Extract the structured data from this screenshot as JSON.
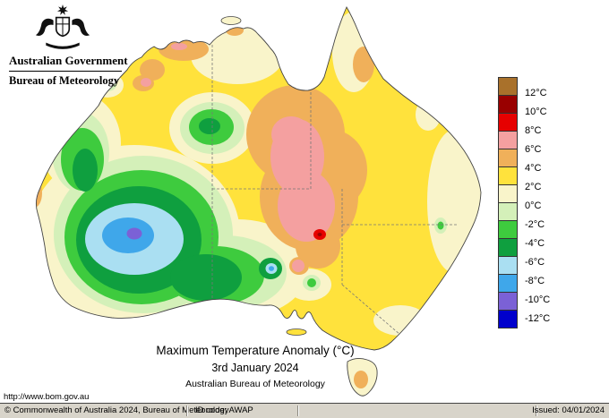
{
  "header": {
    "line1": "Australian Government",
    "line2": "Bureau of Meteorology"
  },
  "map": {
    "title": "Maximum Temperature Anomaly (°C)",
    "date": "3rd January 2024",
    "source": "Australian Bureau of Meteorology"
  },
  "legend": {
    "boundary_labels": [
      "12°C",
      "10°C",
      "8°C",
      "6°C",
      "4°C",
      "2°C",
      "0°C",
      "-2°C",
      "-4°C",
      "-6°C",
      "-8°C",
      "-10°C",
      "-12°C"
    ],
    "colors": [
      "#a9712b",
      "#990000",
      "#e60000",
      "#f4a0a0",
      "#f0b05a",
      "#ffe23c",
      "#f9f4ca",
      "#d4f0b9",
      "#3ecb3e",
      "#0f9f3f",
      "#aadff2",
      "#3fa7ea",
      "#7b61d6",
      "#0000cc"
    ]
  },
  "footer": {
    "url": "http://www.bom.gov.au",
    "copyright": "© Commonwealth of Australia 2024, Bureau of Meteorology",
    "id_code": "ID code: AWAP",
    "issued": "Issued: 04/01/2024"
  }
}
